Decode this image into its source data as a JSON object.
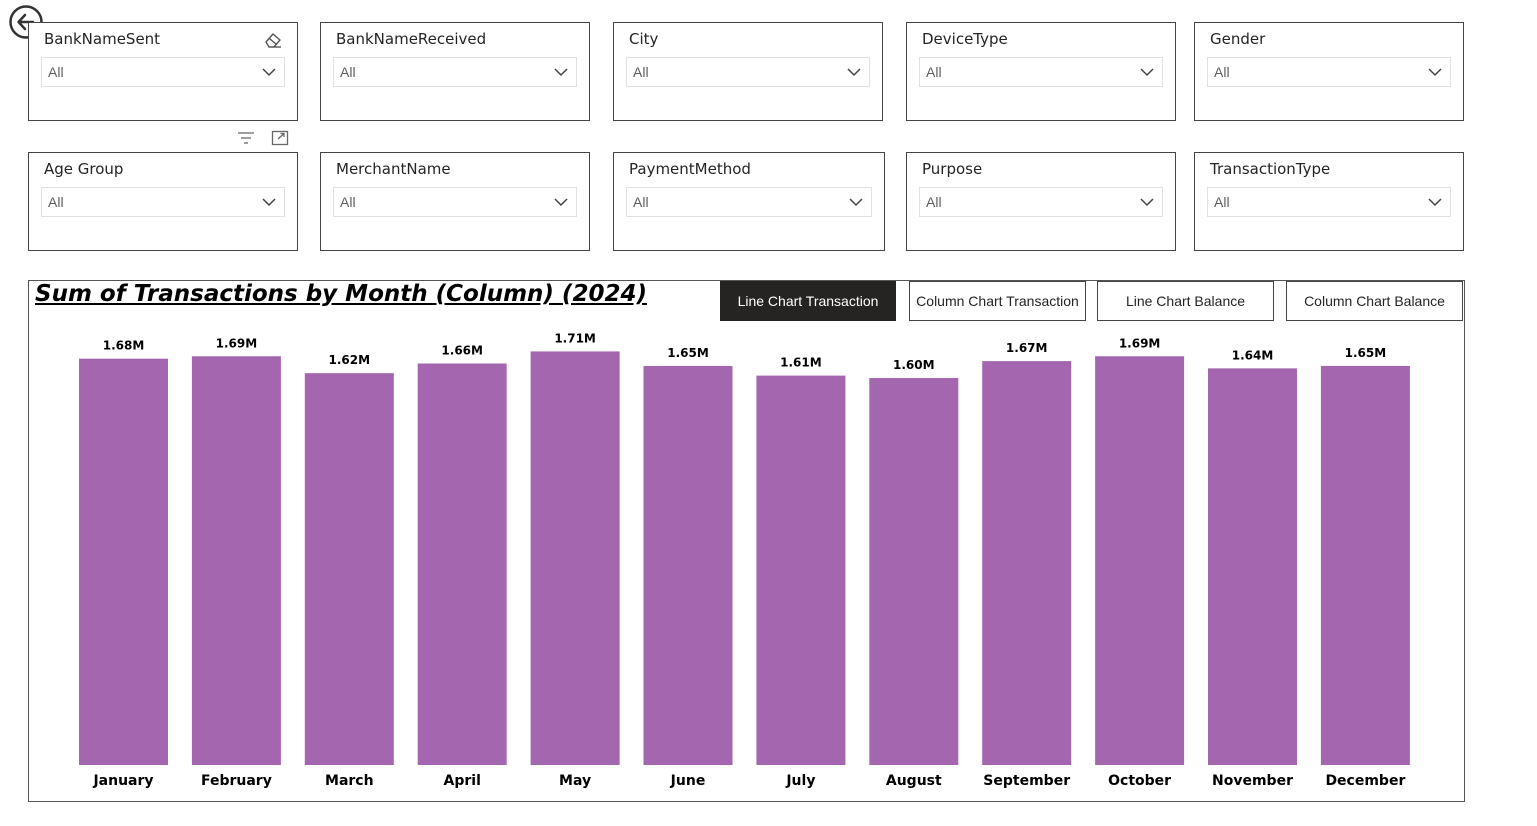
{
  "slicers_row1": [
    {
      "title": "BankNameSent",
      "value": "All"
    },
    {
      "title": "BankNameReceived",
      "value": "All"
    },
    {
      "title": "City",
      "value": "All"
    },
    {
      "title": "DeviceType",
      "value": "All"
    },
    {
      "title": "Gender",
      "value": "All"
    }
  ],
  "slicers_row2": [
    {
      "title": "Age Group",
      "value": "All"
    },
    {
      "title": "MerchantName",
      "value": "All"
    },
    {
      "title": "PaymentMethod",
      "value": "All"
    },
    {
      "title": "Purpose",
      "value": "All"
    },
    {
      "title": "TransactionType",
      "value": "All"
    }
  ],
  "icons": {
    "back": "back-arrow-icon",
    "eraser": "eraser-icon",
    "filter": "filter-icon",
    "focus": "focus-mode-icon",
    "chevron": "chevron-down-icon"
  },
  "buttons": {
    "line_tx": "Line Chart Transaction",
    "column_tx": "Column Chart Transaction",
    "line_bal": "Line Chart Balance",
    "column_bal": "Column Chart Balance"
  },
  "colors": {
    "bar": "#a566b0",
    "active_button": "#252423"
  },
  "chart_data": {
    "type": "bar",
    "title": "Sum of Transactions by Month (Column) (2024)",
    "categories": [
      "January",
      "February",
      "March",
      "April",
      "May",
      "June",
      "July",
      "August",
      "September",
      "October",
      "November",
      "December"
    ],
    "values": [
      1.68,
      1.69,
      1.62,
      1.66,
      1.71,
      1.65,
      1.61,
      1.6,
      1.67,
      1.69,
      1.64,
      1.65
    ],
    "data_labels": [
      "1.68M",
      "1.69M",
      "1.62M",
      "1.66M",
      "1.71M",
      "1.65M",
      "1.61M",
      "1.60M",
      "1.67M",
      "1.69M",
      "1.64M",
      "1.65M"
    ],
    "unit": "M",
    "ylim": [
      0,
      1.72
    ],
    "grid": false
  }
}
